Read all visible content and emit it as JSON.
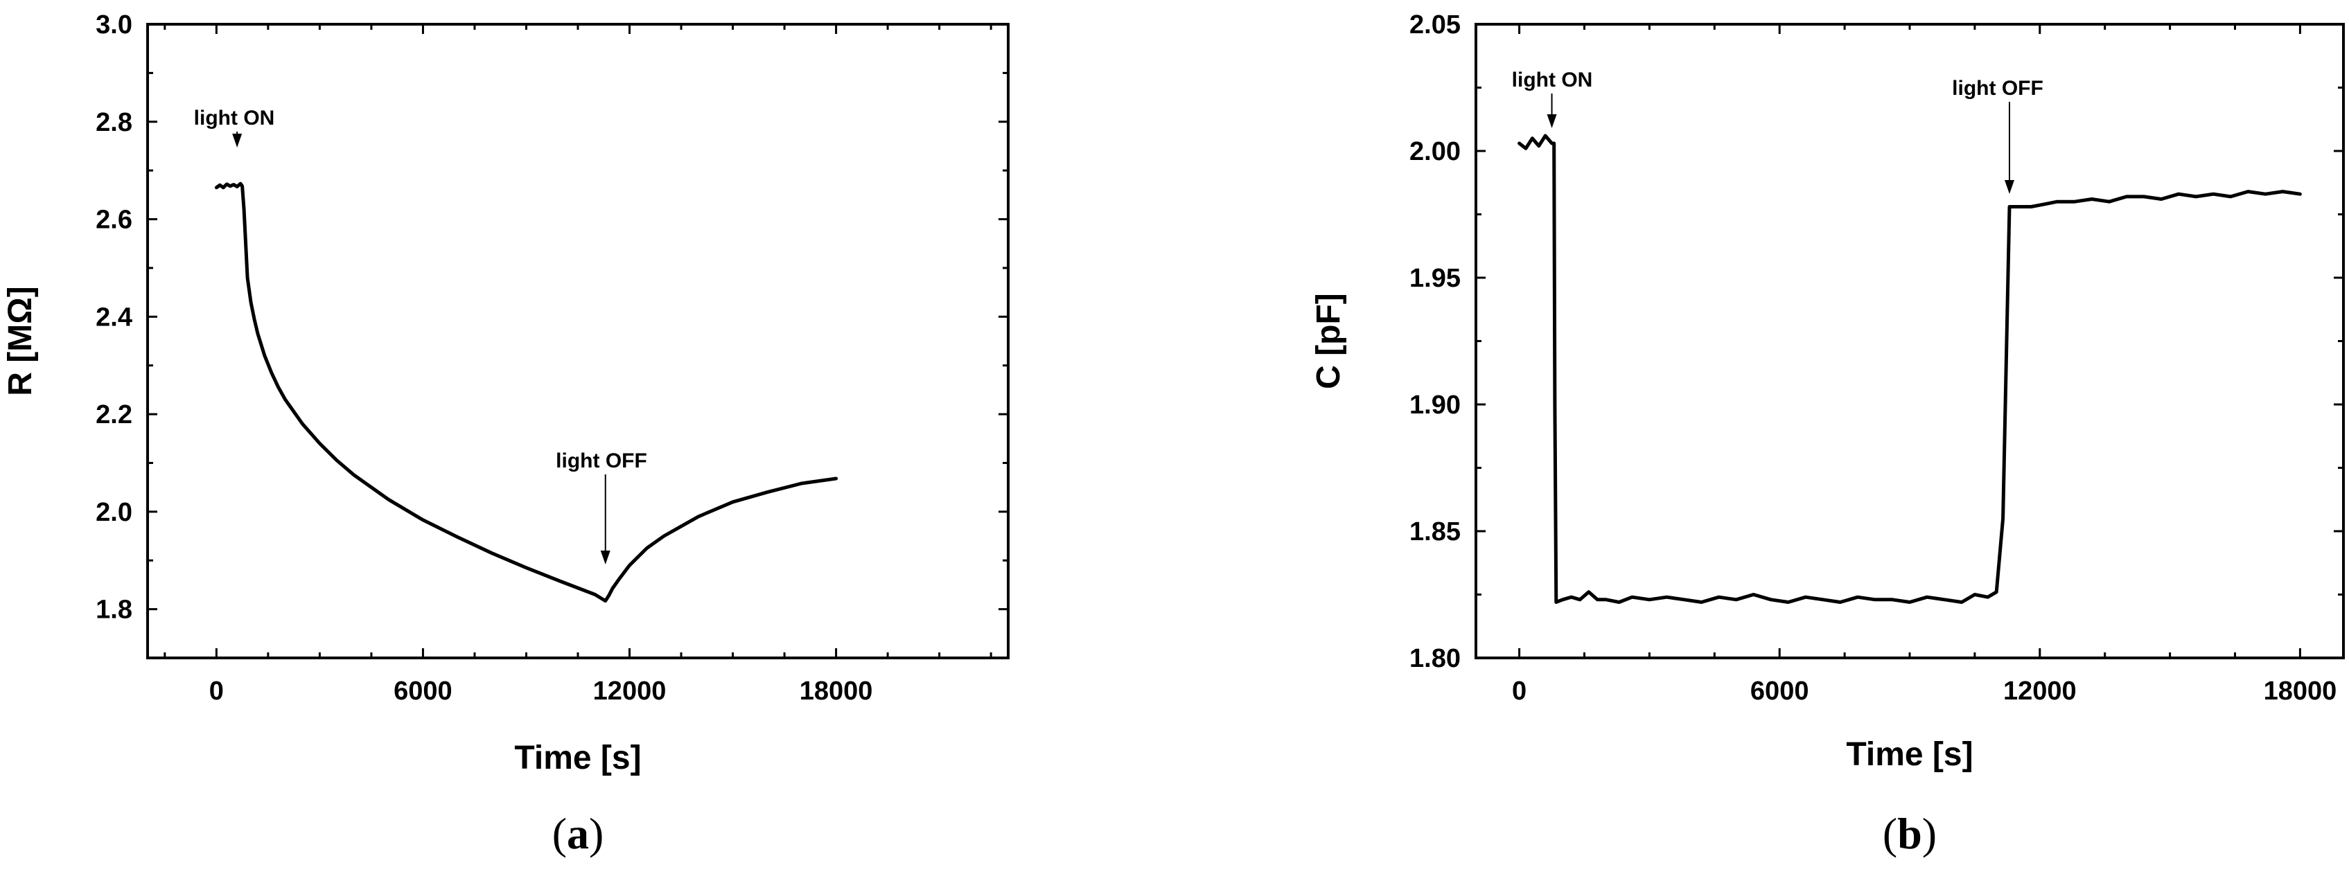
{
  "panels": [
    {
      "panel_letter": "a",
      "chart_data": {
        "type": "line",
        "xlabel": "Time  [s]",
        "ylabel": "R [MΩ]",
        "xlim": [
          -2000,
          23000
        ],
        "ylim": [
          1.7,
          3.0
        ],
        "xticks": [
          0,
          6000,
          12000,
          18000
        ],
        "xtick_labels": [
          "0",
          "6000",
          "12000",
          "18000"
        ],
        "yticks": [
          1.8,
          2.0,
          2.2,
          2.4,
          2.6,
          2.8,
          3.0
        ],
        "ytick_labels": [
          "1.8",
          "2.0",
          "2.2",
          "2.4",
          "2.6",
          "2.8",
          "3.0"
        ],
        "grid": false,
        "series": [
          {
            "x": [
              0,
              100,
              200,
              300,
              400,
              500,
              600,
              700,
              750,
              800,
              850,
              900,
              1000,
              1100,
              1200,
              1400,
              1600,
              1800,
              2000,
              2500,
              3000,
              3500,
              4000,
              5000,
              6000,
              7000,
              8000,
              9000,
              10000,
              11000,
              11300,
              11400,
              11500,
              11700,
              12000,
              12500,
              13000,
              14000,
              15000,
              16000,
              17000,
              18000
            ],
            "y": [
              2.665,
              2.67,
              2.665,
              2.672,
              2.668,
              2.671,
              2.667,
              2.673,
              2.668,
              2.62,
              2.55,
              2.48,
              2.43,
              2.395,
              2.365,
              2.32,
              2.285,
              2.255,
              2.23,
              2.18,
              2.14,
              2.105,
              2.075,
              2.025,
              1.983,
              1.948,
              1.915,
              1.885,
              1.857,
              1.83,
              1.817,
              1.828,
              1.842,
              1.862,
              1.89,
              1.925,
              1.95,
              1.99,
              2.02,
              2.04,
              2.058,
              2.068
            ]
          }
        ],
        "annotations": [
          {
            "text": "light ON",
            "x": 600,
            "y": 2.67
          },
          {
            "text": "light OFF",
            "x": 11300,
            "y": 1.817
          }
        ]
      }
    },
    {
      "panel_letter": "b",
      "chart_data": {
        "type": "line",
        "xlabel": "Time  [s]",
        "ylabel": "C [pF]",
        "xlim": [
          -1000,
          19000
        ],
        "ylim": [
          1.8,
          2.05
        ],
        "xticks": [
          0,
          6000,
          12000,
          18000
        ],
        "xtick_labels": [
          "0",
          "6000",
          "12000",
          "18000"
        ],
        "yticks": [
          1.8,
          1.85,
          1.9,
          1.95,
          2.0,
          2.05
        ],
        "ytick_labels": [
          "1.80",
          "1.85",
          "1.90",
          "1.95",
          "2.00",
          "2.05"
        ],
        "grid": false,
        "series": [
          {
            "x": [
              0,
              150,
              300,
              450,
              600,
              750,
              800,
              820,
              850,
              1000,
              1200,
              1400,
              1600,
              1800,
              2000,
              2300,
              2600,
              3000,
              3400,
              3800,
              4200,
              4600,
              5000,
              5400,
              5800,
              6200,
              6600,
              7000,
              7400,
              7800,
              8200,
              8600,
              9000,
              9400,
              9800,
              10200,
              10500,
              10800,
              11000,
              11150,
              11300,
              11500,
              11800,
              12100,
              12400,
              12800,
              13200,
              13600,
              14000,
              14400,
              14800,
              15200,
              15600,
              16000,
              16400,
              16800,
              17200,
              17600,
              18000
            ],
            "y": [
              2.003,
              2.001,
              2.005,
              2.002,
              2.006,
              2.003,
              2.003,
              1.9,
              1.822,
              1.823,
              1.824,
              1.823,
              1.826,
              1.823,
              1.823,
              1.822,
              1.824,
              1.823,
              1.824,
              1.823,
              1.822,
              1.824,
              1.823,
              1.825,
              1.823,
              1.822,
              1.824,
              1.823,
              1.822,
              1.824,
              1.823,
              1.823,
              1.822,
              1.824,
              1.823,
              1.822,
              1.825,
              1.824,
              1.826,
              1.855,
              1.978,
              1.978,
              1.978,
              1.979,
              1.98,
              1.98,
              1.981,
              1.98,
              1.982,
              1.982,
              1.981,
              1.983,
              1.982,
              1.983,
              1.982,
              1.984,
              1.983,
              1.984,
              1.983
            ]
          }
        ],
        "annotations": [
          {
            "text": "light ON",
            "x": 750,
            "y": 2.003
          },
          {
            "text": "light OFF",
            "x": 11300,
            "y": 1.978
          }
        ]
      }
    }
  ]
}
